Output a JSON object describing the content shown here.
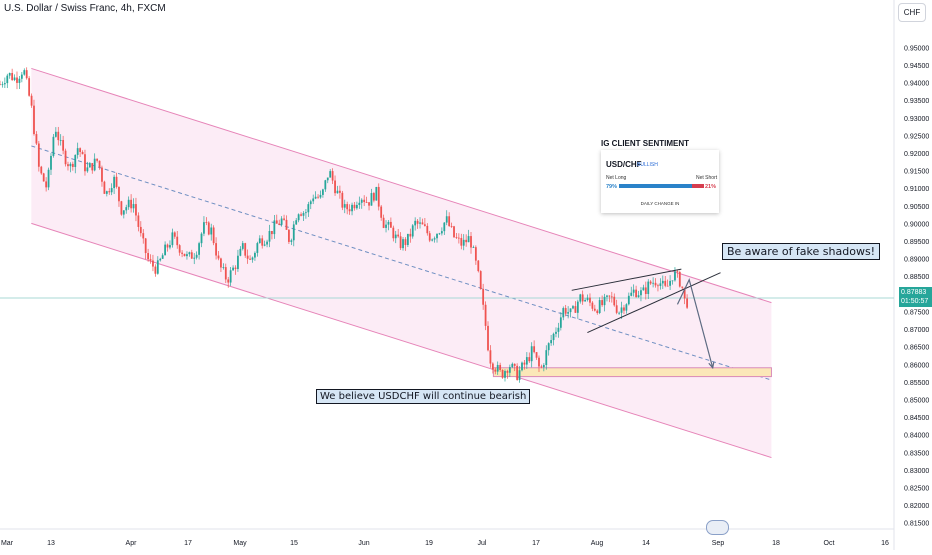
{
  "header": {
    "title": "U.S. Dollar / Swiss Franc, 4h, FXCM",
    "currency_button": "CHF"
  },
  "price_tag": {
    "price": "0.87883",
    "countdown": "01:50:57"
  },
  "annotations": {
    "top_note": "Be aware of fake shadows!",
    "bottom_note": "We believe USDCHF will continue bearish"
  },
  "ig_widget": {
    "title": "IG CLIENT SENTIMENT",
    "pair": "USD/CHF",
    "badge": "BULLISH",
    "net_long_label": "Net Long",
    "net_short_label": "Net Short",
    "net_long_value": "79%",
    "net_short_value": "21%",
    "daily_change": "DAILY CHANGE IN"
  },
  "colors": {
    "up": "#26a69a",
    "down": "#ef5350",
    "channel": "#f7c8e4",
    "channel_line": "#e684b8",
    "midline": "#6f8fc2",
    "support_zone": "#fbe7b8",
    "current_price_line": "#a8d8d6"
  },
  "chart_data": {
    "type": "candlestick",
    "title": "U.S. Dollar / Swiss Franc, 4h, FXCM",
    "y_axis": {
      "ticks": [
        "0.95000",
        "0.94500",
        "0.94000",
        "0.93500",
        "0.93000",
        "0.92500",
        "0.92000",
        "0.91500",
        "0.91000",
        "0.90500",
        "0.90000",
        "0.89500",
        "0.89000",
        "0.88500",
        "0.88000",
        "0.87500",
        "0.87000",
        "0.86500",
        "0.86000",
        "0.85500",
        "0.85000",
        "0.84500",
        "0.84000",
        "0.83500",
        "0.83000",
        "0.82500",
        "0.82000",
        "0.81500"
      ],
      "range": [
        0.8135,
        0.9535
      ]
    },
    "x_axis": {
      "ticks": [
        "Mar",
        "13",
        "Apr",
        "17",
        "May",
        "15",
        "Jun",
        "19",
        "Jul",
        "17",
        "Aug",
        "14",
        "Sep",
        "18",
        "Oct",
        "16"
      ],
      "range_days": [
        0,
        226
      ]
    },
    "price_path": [
      [
        0,
        0.9395
      ],
      [
        2,
        0.9425
      ],
      [
        4,
        0.941
      ],
      [
        6,
        0.944
      ],
      [
        8,
        0.933
      ],
      [
        10,
        0.915
      ],
      [
        12,
        0.91
      ],
      [
        14,
        0.928
      ],
      [
        16,
        0.92
      ],
      [
        18,
        0.916
      ],
      [
        20,
        0.922
      ],
      [
        22,
        0.915
      ],
      [
        25,
        0.918
      ],
      [
        27,
        0.908
      ],
      [
        29,
        0.913
      ],
      [
        31,
        0.904
      ],
      [
        34,
        0.906
      ],
      [
        36,
        0.896
      ],
      [
        38,
        0.889
      ],
      [
        40,
        0.887
      ],
      [
        42,
        0.892
      ],
      [
        44,
        0.896
      ],
      [
        46,
        0.893
      ],
      [
        48,
        0.89
      ],
      [
        50,
        0.892
      ],
      [
        52,
        0.899
      ],
      [
        54,
        0.898
      ],
      [
        56,
        0.888
      ],
      [
        58,
        0.884
      ],
      [
        60,
        0.888
      ],
      [
        62,
        0.893
      ],
      [
        64,
        0.889
      ],
      [
        66,
        0.895
      ],
      [
        68,
        0.896
      ],
      [
        70,
        0.899
      ],
      [
        72,
        0.901
      ],
      [
        74,
        0.895
      ],
      [
        76,
        0.904
      ],
      [
        78,
        0.903
      ],
      [
        80,
        0.908
      ],
      [
        82,
        0.907
      ],
      [
        84,
        0.915
      ],
      [
        86,
        0.909
      ],
      [
        88,
        0.904
      ],
      [
        90,
        0.905
      ],
      [
        92,
        0.908
      ],
      [
        94,
        0.906
      ],
      [
        96,
        0.909
      ],
      [
        98,
        0.9
      ],
      [
        100,
        0.898
      ],
      [
        102,
        0.894
      ],
      [
        104,
        0.895
      ],
      [
        106,
        0.9
      ],
      [
        108,
        0.899
      ],
      [
        110,
        0.896
      ],
      [
        112,
        0.898
      ],
      [
        114,
        0.901
      ],
      [
        116,
        0.896
      ],
      [
        118,
        0.894
      ],
      [
        120,
        0.896
      ],
      [
        122,
        0.886
      ],
      [
        124,
        0.871
      ],
      [
        125,
        0.862
      ],
      [
        126,
        0.86
      ],
      [
        128,
        0.857
      ],
      [
        130,
        0.86
      ],
      [
        132,
        0.857
      ],
      [
        134,
        0.86
      ],
      [
        136,
        0.864
      ],
      [
        138,
        0.858
      ],
      [
        140,
        0.865
      ],
      [
        142,
        0.87
      ],
      [
        144,
        0.876
      ],
      [
        146,
        0.874
      ],
      [
        148,
        0.879
      ],
      [
        150,
        0.878
      ],
      [
        152,
        0.876
      ],
      [
        154,
        0.877
      ],
      [
        156,
        0.879
      ],
      [
        158,
        0.875
      ],
      [
        160,
        0.878
      ],
      [
        162,
        0.881
      ],
      [
        164,
        0.88
      ],
      [
        166,
        0.883
      ],
      [
        168,
        0.884
      ],
      [
        170,
        0.881
      ],
      [
        172,
        0.886
      ],
      [
        174,
        0.883
      ],
      [
        175,
        0.877
      ],
      [
        176,
        0.8785
      ]
    ],
    "channel": {
      "upper": [
        [
          8,
          0.944
        ],
        [
          197,
          0.8775
        ]
      ],
      "lower": [
        [
          8,
          0.9
        ],
        [
          197,
          0.8335
        ]
      ],
      "mid": [
        [
          8,
          0.922
        ],
        [
          197,
          0.8555
        ]
      ]
    },
    "support_zone": {
      "from_day": 126,
      "to_day": 197,
      "low": 0.8565,
      "high": 0.859
    },
    "wedge": {
      "upper": [
        [
          146,
          0.881
        ],
        [
          174,
          0.887
        ]
      ],
      "lower": [
        [
          150,
          0.869
        ],
        [
          184,
          0.886
        ]
      ]
    },
    "projection_arrow": [
      [
        173,
        0.877
      ],
      [
        176,
        0.884
      ],
      [
        182,
        0.859
      ]
    ],
    "current_price": 0.87883
  }
}
